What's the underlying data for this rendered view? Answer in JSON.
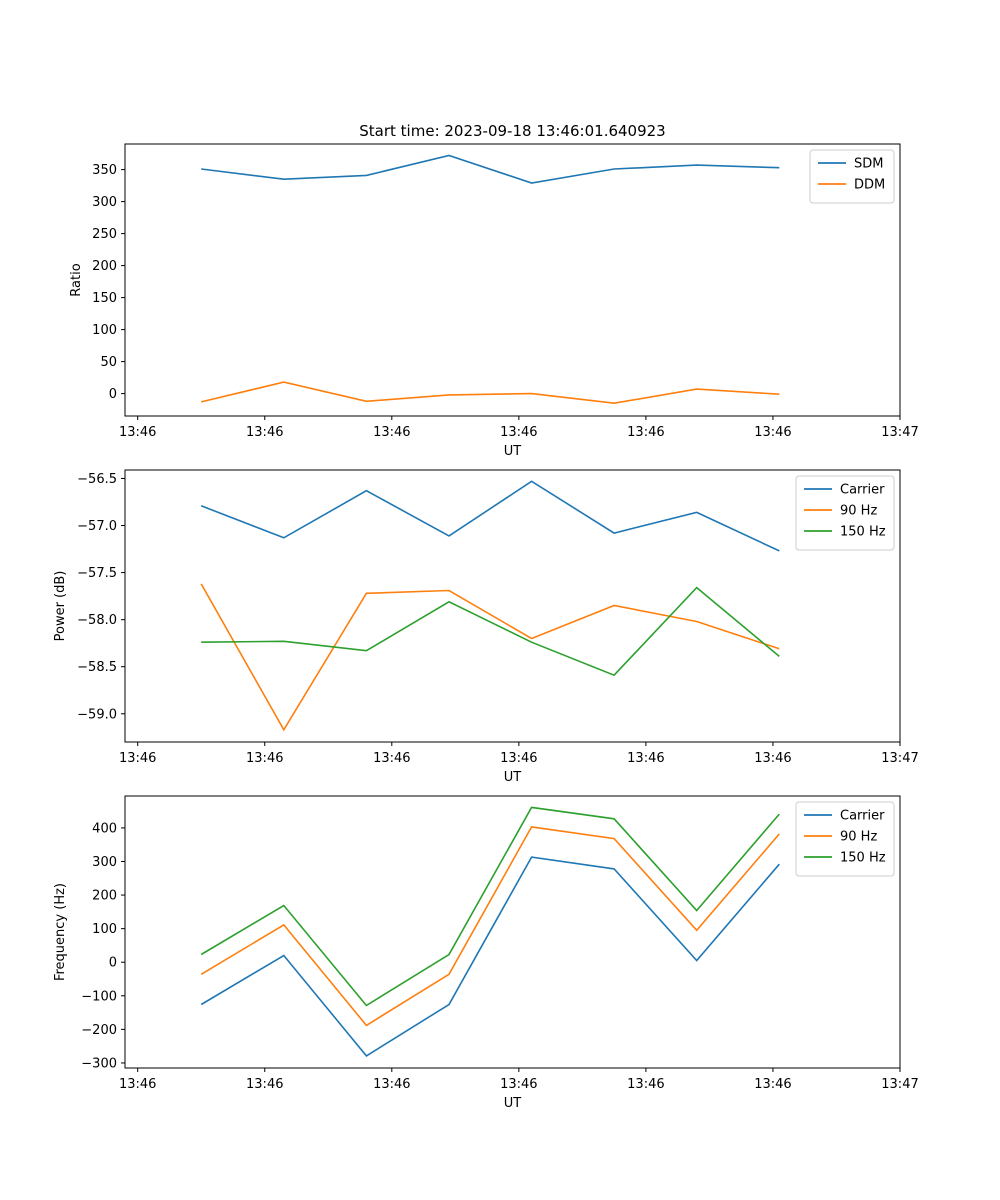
{
  "figure_title": "Start time: 2023-09-18 13:46:01.640923",
  "colors": {
    "blue": "#1f77b4",
    "orange": "#ff7f0e",
    "green": "#2ca02c"
  },
  "chart_data": [
    {
      "type": "line",
      "title": "Start time: 2023-09-18 13:46:01.640923",
      "xlabel": "UT",
      "ylabel": "Ratio",
      "x": [
        0.5,
        1.15,
        1.8,
        2.45,
        3.1,
        3.75,
        4.4,
        5.05
      ],
      "xlim": [
        -0.1,
        6.0
      ],
      "xticks": [
        0.0,
        1.0,
        2.0,
        3.0,
        4.0,
        5.0,
        6.0
      ],
      "xtick_labels": [
        "13:46",
        "13:46",
        "13:46",
        "13:46",
        "13:46",
        "13:46",
        "13:47"
      ],
      "ylim": [
        -35,
        390
      ],
      "yticks": [
        0,
        50,
        100,
        150,
        200,
        250,
        300,
        350
      ],
      "ytick_labels": [
        "0",
        "50",
        "100",
        "150",
        "200",
        "250",
        "300",
        "350"
      ],
      "legend_position": "top-right",
      "series": [
        {
          "name": "SDM",
          "color": "#1f77b4",
          "values": [
            351,
            335,
            341,
            372,
            329,
            351,
            357,
            353
          ]
        },
        {
          "name": "DDM",
          "color": "#ff7f0e",
          "values": [
            -13,
            18,
            -12,
            -2,
            0,
            -15,
            7,
            -1
          ]
        }
      ]
    },
    {
      "type": "line",
      "title": "",
      "xlabel": "UT",
      "ylabel": "Power (dB)",
      "x": [
        0.5,
        1.15,
        1.8,
        2.45,
        3.1,
        3.75,
        4.4,
        5.05
      ],
      "xlim": [
        -0.1,
        6.0
      ],
      "xticks": [
        0.0,
        1.0,
        2.0,
        3.0,
        4.0,
        5.0,
        6.0
      ],
      "xtick_labels": [
        "13:46",
        "13:46",
        "13:46",
        "13:46",
        "13:46",
        "13:46",
        "13:47"
      ],
      "ylim": [
        -59.3,
        -56.41
      ],
      "yticks": [
        -59.0,
        -58.5,
        -58.0,
        -57.5,
        -57.0,
        -56.5
      ],
      "ytick_labels": [
        "−59.0",
        "−58.5",
        "−58.0",
        "−57.5",
        "−57.0",
        "−56.5"
      ],
      "legend_position": "top-right",
      "series": [
        {
          "name": "Carrier",
          "color": "#1f77b4",
          "values": [
            -56.79,
            -57.13,
            -56.63,
            -57.11,
            -56.53,
            -57.08,
            -56.86,
            -57.27
          ]
        },
        {
          "name": "90 Hz",
          "color": "#ff7f0e",
          "values": [
            -57.62,
            -59.17,
            -57.72,
            -57.69,
            -58.2,
            -57.85,
            -58.02,
            -58.31
          ]
        },
        {
          "name": "150 Hz",
          "color": "#2ca02c",
          "values": [
            -58.24,
            -58.23,
            -58.33,
            -57.81,
            -58.24,
            -58.59,
            -57.66,
            -58.39
          ]
        }
      ]
    },
    {
      "type": "line",
      "title": "",
      "xlabel": "UT",
      "ylabel": "Frequency (Hz)",
      "x": [
        0.5,
        1.15,
        1.8,
        2.45,
        3.1,
        3.75,
        4.4,
        5.05
      ],
      "xlim": [
        -0.1,
        6.0
      ],
      "xticks": [
        0.0,
        1.0,
        2.0,
        3.0,
        4.0,
        5.0,
        6.0
      ],
      "xtick_labels": [
        "13:46",
        "13:46",
        "13:46",
        "13:46",
        "13:46",
        "13:46",
        "13:47"
      ],
      "ylim": [
        -315,
        495
      ],
      "yticks": [
        -300,
        -200,
        -100,
        0,
        100,
        200,
        300,
        400
      ],
      "ytick_labels": [
        "−300",
        "−200",
        "−100",
        "0",
        "100",
        "200",
        "300",
        "400"
      ],
      "legend_position": "top-right",
      "series": [
        {
          "name": "Carrier",
          "color": "#1f77b4",
          "values": [
            -126,
            20,
            -279,
            -126,
            313,
            278,
            5,
            292
          ]
        },
        {
          "name": "90 Hz",
          "color": "#ff7f0e",
          "values": [
            -36,
            111,
            -188,
            -36,
            403,
            368,
            95,
            382
          ]
        },
        {
          "name": "150 Hz",
          "color": "#2ca02c",
          "values": [
            23,
            169,
            -129,
            23,
            461,
            427,
            154,
            441
          ]
        }
      ]
    }
  ]
}
